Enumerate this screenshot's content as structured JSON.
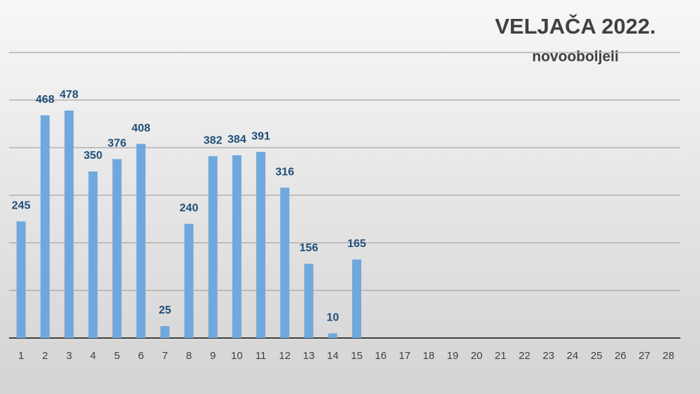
{
  "chart_data": {
    "type": "bar",
    "title": "VELJAČA 2022.",
    "subtitle": "novooboljeli",
    "categories": [
      "1",
      "2",
      "3",
      "4",
      "5",
      "6",
      "7",
      "8",
      "9",
      "10",
      "11",
      "12",
      "13",
      "14",
      "15",
      "16",
      "17",
      "18",
      "19",
      "20",
      "21",
      "22",
      "23",
      "24",
      "25",
      "26",
      "27",
      "28"
    ],
    "values": [
      245,
      468,
      478,
      350,
      376,
      408,
      25,
      240,
      382,
      384,
      391,
      316,
      156,
      10,
      165,
      null,
      null,
      null,
      null,
      null,
      null,
      null,
      null,
      null,
      null,
      null,
      null,
      null
    ],
    "color": "#6fa8dc",
    "ylim": [
      0,
      600
    ],
    "yticks": [
      0,
      100,
      200,
      300,
      400,
      500,
      600
    ],
    "grid": true
  }
}
